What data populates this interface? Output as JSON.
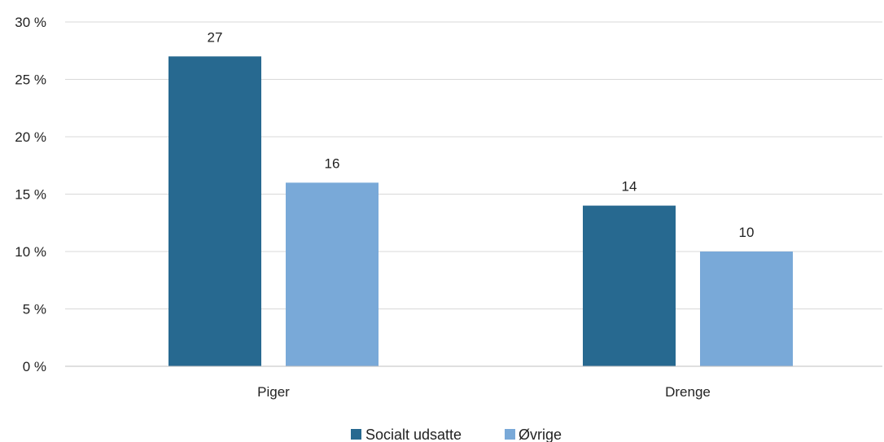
{
  "chart_data": {
    "type": "bar",
    "categories": [
      "Piger",
      "Drenge"
    ],
    "series": [
      {
        "name": "Socialt udsatte",
        "values": [
          27,
          14
        ],
        "color": "#276990"
      },
      {
        "name": "Øvrige",
        "values": [
          16,
          10
        ],
        "color": "#79a9d8"
      }
    ],
    "data_labels": [
      [
        "27",
        "14"
      ],
      [
        "16",
        "10"
      ]
    ],
    "ylim": [
      0,
      30
    ],
    "yticks": [
      0,
      5,
      10,
      15,
      20,
      25,
      30
    ],
    "ytick_labels": [
      "0 %",
      "5 %",
      "10 %",
      "15 %",
      "20 %",
      "25 %",
      "30 %"
    ],
    "title": "",
    "xlabel": "",
    "ylabel": "",
    "grid": true,
    "legend_position": "bottom-center",
    "gridline_color": "#d9d9d9"
  }
}
